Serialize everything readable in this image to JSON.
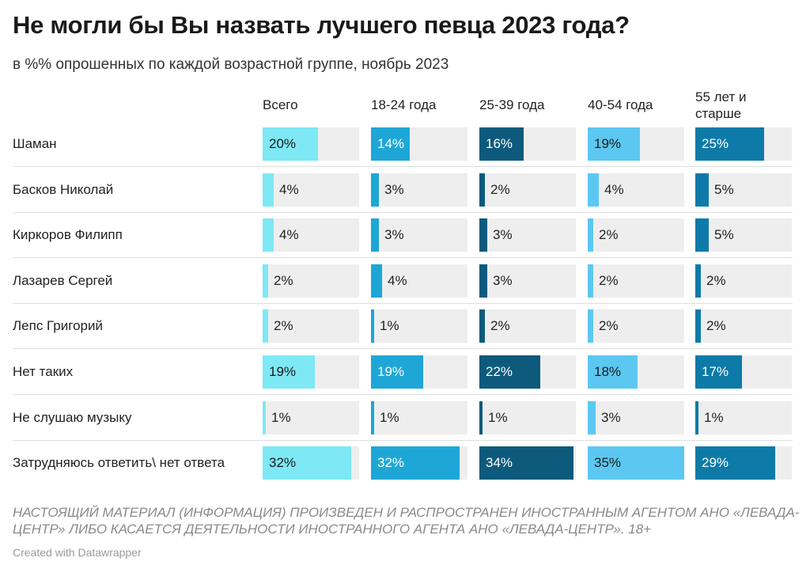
{
  "title": "Не могли бы Вы назвать лучшего певца 2023 года?",
  "subtitle": "в %% опрошенных по каждой возрастной группе, ноябрь 2023",
  "note": "НАСТОЯЩИЙ МАТЕРИАЛ (ИНФОРМАЦИЯ) ПРОИЗВЕДЕН И РАСПРОСТРАНЕН ИНОСТРАННЫМ АГЕНТОМ АНО «ЛЕВАДА-ЦЕНТР» ЛИБО КАСАЕТСЯ ДЕЯТЕЛЬНОСТИ ИНОСТРАННОГО АГЕНТА АНО «ЛЕВАДА-ЦЕНТР». 18+",
  "credit": "Created with Datawrapper",
  "colors": {
    "track": "#eeeeee",
    "all": "#7ee8f5",
    "18-24": "#1ea7d6",
    "25-39": "#0d5a7d",
    "40-54": "#5cc8f2",
    "55+": "#0e7aa8"
  },
  "chart_data": {
    "type": "bar",
    "title": "Не могли бы Вы назвать лучшего певца 2023 года?",
    "subtitle": "в %% опрошенных по каждой возрастной группе, ноябрь 2023",
    "categories": [
      "Шаман",
      "Басков Николай",
      "Киркоров Филипп",
      "Лазарев Сергей",
      "Лепс Григорий",
      "Нет таких",
      "Не слушаю музыку",
      "Затрудняюсь ответить\\ нет ответа"
    ],
    "series": [
      {
        "name": "Всего",
        "values": [
          20,
          4,
          4,
          2,
          2,
          19,
          1,
          32
        ]
      },
      {
        "name": "18-24 года",
        "values": [
          14,
          3,
          3,
          4,
          1,
          19,
          1,
          32
        ]
      },
      {
        "name": "25-39 года",
        "values": [
          16,
          2,
          3,
          3,
          2,
          22,
          1,
          34
        ]
      },
      {
        "name": "40-54 года",
        "values": [
          19,
          4,
          2,
          2,
          2,
          18,
          3,
          35
        ]
      },
      {
        "name": "55 лет и старше",
        "values": [
          25,
          5,
          5,
          2,
          2,
          17,
          1,
          29
        ]
      }
    ],
    "value_suffix": "%",
    "xlim": [
      0,
      35
    ]
  }
}
